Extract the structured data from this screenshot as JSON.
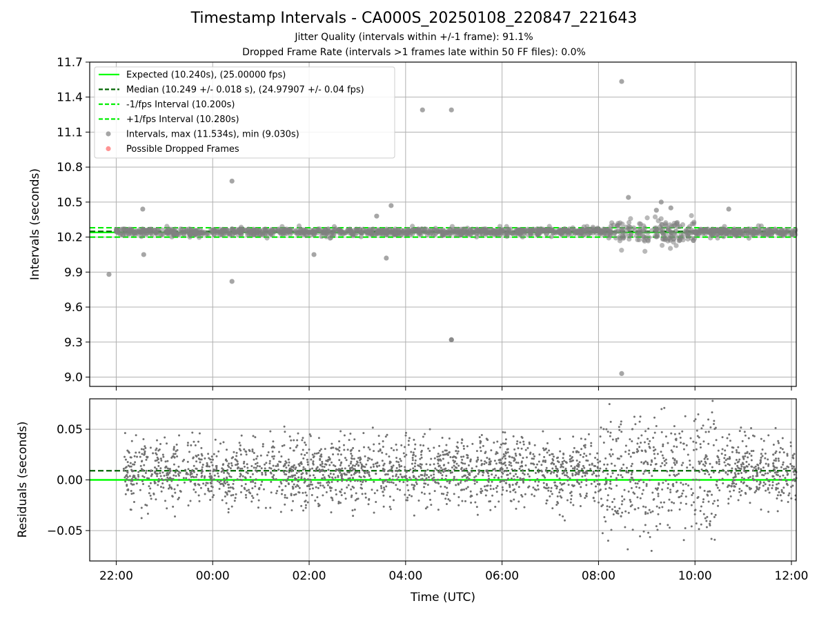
{
  "header": {
    "title": "Timestamp Intervals - CA000S_20250108_220847_221643",
    "subtitle_jitter": "Jitter Quality (intervals within +/-1 frame): 91.1%",
    "subtitle_dropped": "Dropped Frame Rate (intervals >1 frames late within 50 FF files): 0.0%"
  },
  "colors": {
    "expected": "#00ff00",
    "median": "#006400",
    "fps_interval": "#00ee00",
    "points": "#808080",
    "dropped": "#ff6666",
    "grid": "#b0b0b0"
  },
  "chart_data": [
    {
      "type": "scatter",
      "panel": "intervals",
      "xlabel": "",
      "ylabel": "Intervals (seconds)",
      "x_unit": "hours since 22:00 UTC on the x axis (tick labels are clock times)",
      "xlim": [
        -0.55,
        14.1
      ],
      "ylim": [
        8.92,
        11.7
      ],
      "yticks": [
        "9.0",
        "9.3",
        "9.6",
        "9.9",
        "10.2",
        "10.5",
        "10.8",
        "11.1",
        "11.4",
        "11.7"
      ],
      "ytick_values": [
        9.0,
        9.3,
        9.6,
        9.9,
        10.2,
        10.5,
        10.8,
        11.1,
        11.4,
        11.7
      ],
      "grid": true,
      "legend_position": "top-left",
      "lines": {
        "expected": 10.24,
        "median": 10.249,
        "minus_one_frame": 10.2,
        "plus_one_frame": 10.28
      },
      "legend": [
        {
          "label": "Expected (10.240s), (25.00000 fps)",
          "style": "solid",
          "color": "#00ff00"
        },
        {
          "label": "Median (10.249 +/- 0.018 s), (24.97907 +/- 0.04 fps)",
          "style": "dashed",
          "color": "#006400"
        },
        {
          "label": "-1/fps Interval (10.200s)",
          "style": "dashed",
          "color": "#00ee00"
        },
        {
          "label": "+1/fps Interval (10.280s)",
          "style": "dashed",
          "color": "#00ee00"
        },
        {
          "label": "Intervals, max (11.534s), min (9.030s)",
          "style": "dot",
          "color": "#808080"
        },
        {
          "label": "Possible Dropped Frames",
          "style": "dot",
          "color": "#ff6666"
        }
      ],
      "series": [
        {
          "name": "Intervals",
          "x": [
            0.0,
            0.4,
            0.8,
            1.2,
            1.6,
            2.0,
            2.4,
            2.8,
            3.2,
            3.6,
            4.0,
            4.4,
            4.8,
            5.2,
            5.6,
            6.0,
            6.4,
            6.8,
            7.2,
            7.6,
            8.0,
            8.4,
            8.8,
            9.2,
            9.6,
            10.0,
            10.4,
            10.8,
            11.2,
            11.6,
            12.0,
            12.4,
            12.8,
            13.2,
            13.6,
            14.0,
            -0.15,
            0.55,
            0.57,
            2.4,
            2.4,
            5.7,
            6.35,
            6.95,
            6.95,
            6.95,
            5.6,
            5.4,
            4.1,
            10.48,
            10.48,
            10.62,
            11.2,
            11.3,
            11.5,
            12.7
          ],
          "y": [
            10.25,
            10.24,
            10.26,
            10.23,
            10.25,
            10.24,
            10.27,
            10.25,
            10.23,
            10.26,
            10.24,
            10.25,
            10.26,
            10.24,
            10.25,
            10.23,
            10.27,
            10.25,
            10.24,
            10.26,
            10.25,
            10.24,
            10.26,
            10.25,
            10.24,
            10.27,
            10.25,
            10.24,
            10.26,
            10.25,
            10.24,
            10.25,
            10.26,
            10.24,
            10.25,
            10.24,
            9.88,
            10.44,
            10.05,
            10.68,
            9.82,
            10.47,
            11.29,
            9.32,
            11.29,
            9.32,
            10.02,
            10.38,
            10.05,
            11.534,
            9.03,
            10.54,
            10.43,
            10.5,
            10.45,
            10.44
          ]
        }
      ]
    },
    {
      "type": "scatter",
      "panel": "residuals",
      "xlabel": "Time (UTC)",
      "ylabel": "Residuals (seconds)",
      "x_unit": "hours since 22:00 UTC",
      "xlim": [
        -0.55,
        14.1
      ],
      "ylim": [
        -0.08,
        0.08
      ],
      "yticks": [
        "−0.05",
        "0.00",
        "0.05"
      ],
      "ytick_values": [
        -0.05,
        0.0,
        0.05
      ],
      "xticks": [
        "22:00",
        "00:00",
        "02:00",
        "04:00",
        "06:00",
        "08:00",
        "10:00",
        "12:00"
      ],
      "xtick_values": [
        0,
        2,
        4,
        6,
        8,
        10,
        12,
        14
      ],
      "grid": true,
      "lines": {
        "expected": 0.0,
        "median": 0.009
      },
      "series": [
        {
          "name": "Residuals",
          "x": [
            0.2,
            0.5,
            0.9,
            1.3,
            1.8,
            2.2,
            2.7,
            3.1,
            3.5,
            4.0,
            4.4,
            4.9,
            5.3,
            5.8,
            6.2,
            6.6,
            7.1,
            7.5,
            8.0,
            8.4,
            8.9,
            9.3,
            9.8,
            10.2,
            10.7,
            11.1,
            11.6,
            12.0,
            12.5,
            12.9,
            13.4,
            13.8
          ],
          "y": [
            0.02,
            -0.01,
            0.03,
            0.0,
            0.015,
            -0.02,
            0.025,
            0.005,
            -0.015,
            0.03,
            0.01,
            -0.03,
            0.02,
            -0.005,
            0.035,
            0.0,
            -0.025,
            0.02,
            0.01,
            -0.015,
            0.03,
            -0.04,
            0.045,
            -0.06,
            0.05,
            -0.07,
            0.04,
            -0.03,
            0.02,
            -0.02,
            0.03,
            -0.01
          ]
        }
      ]
    }
  ]
}
